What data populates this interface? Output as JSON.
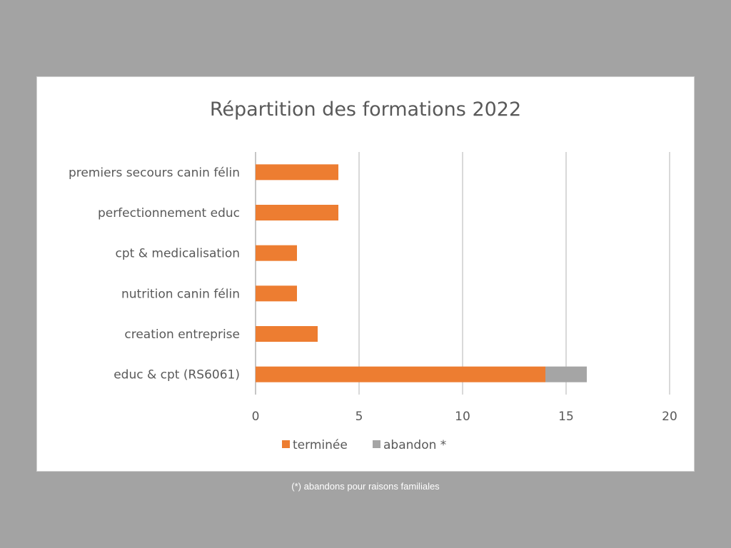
{
  "chart_data": {
    "type": "bar",
    "orientation": "horizontal",
    "stacked": true,
    "title": "Répartition des formations 2022",
    "categories": [
      "premiers secours canin félin",
      "perfectionnement educ",
      "cpt & medicalisation",
      "nutrition canin félin",
      "creation entreprise",
      "educ & cpt (RS6061)"
    ],
    "series": [
      {
        "name": "terminée",
        "color": "#ed7d31",
        "values": [
          4,
          4,
          2,
          2,
          3,
          14
        ]
      },
      {
        "name": "abandon *",
        "color": "#a5a5a5",
        "values": [
          0,
          0,
          0,
          0,
          0,
          2
        ]
      }
    ],
    "xlim": [
      0,
      20
    ],
    "xticks": [
      "0",
      "5",
      "10",
      "15",
      "20"
    ],
    "grid": true,
    "legend": "bottom"
  },
  "footnote": "(*) abandons  pour raisons familiales"
}
